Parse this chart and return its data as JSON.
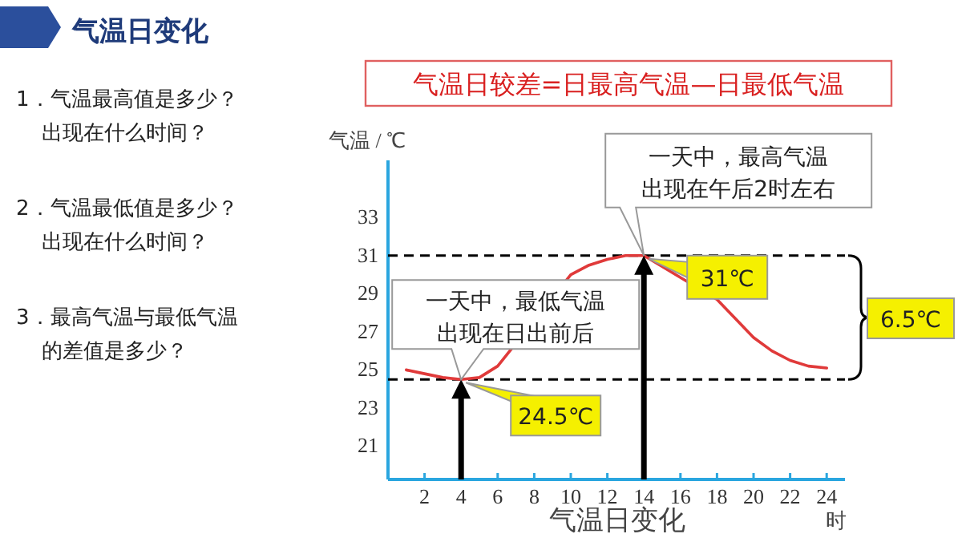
{
  "chart_data": {
    "type": "line",
    "ylabel": "气温 / ℃",
    "xlabel": "时",
    "x": [
      1,
      2,
      3,
      4,
      5,
      6,
      10,
      11,
      12,
      13,
      14,
      18,
      19,
      20,
      21,
      22,
      23,
      24
    ],
    "series": [
      {
        "color": "#e03a3a",
        "values": [
          25.0,
          24.8,
          24.6,
          24.5,
          24.6,
          25.2,
          30.0,
          30.5,
          30.8,
          31.0,
          31.0,
          28.7,
          27.7,
          26.7,
          26.0,
          25.5,
          25.2,
          25.1
        ]
      }
    ],
    "xlim": [
      0,
      25
    ],
    "xticks": [
      2,
      4,
      6,
      8,
      10,
      12,
      14,
      16,
      18,
      20,
      22,
      24
    ],
    "ylim": [
      19.25,
      36
    ],
    "yticks": [
      21,
      23,
      25,
      27,
      29,
      31,
      33
    ],
    "ref_lines": [
      {
        "axis": "y",
        "value": 31,
        "color": "#000000",
        "line_style": "dashed"
      },
      {
        "axis": "y",
        "value": 24.5,
        "color": "#000000",
        "line_style": "dashed"
      }
    ],
    "annotations": [
      "气温日变化",
      "1．气温最高值是多少？",
      "出现在什么时间？",
      "2．气温最低值是多少？",
      "出现在什么时间？",
      "3．最高气温与最低气温",
      "的差值是多少？",
      "气温日较差=日最高气温—日最低气温",
      "一天中，最高气温",
      "出现在午后2时左右",
      "一天中，最低气温",
      "出现在日出前后",
      {
        "text": "31℃",
        "x": 14,
        "y": 31
      },
      {
        "text": "24.5℃",
        "x": 4,
        "y": 24.5
      },
      "6.5℃",
      "气温日变化"
    ],
    "grid": false,
    "marker": "none",
    "line_style": "solid"
  }
}
